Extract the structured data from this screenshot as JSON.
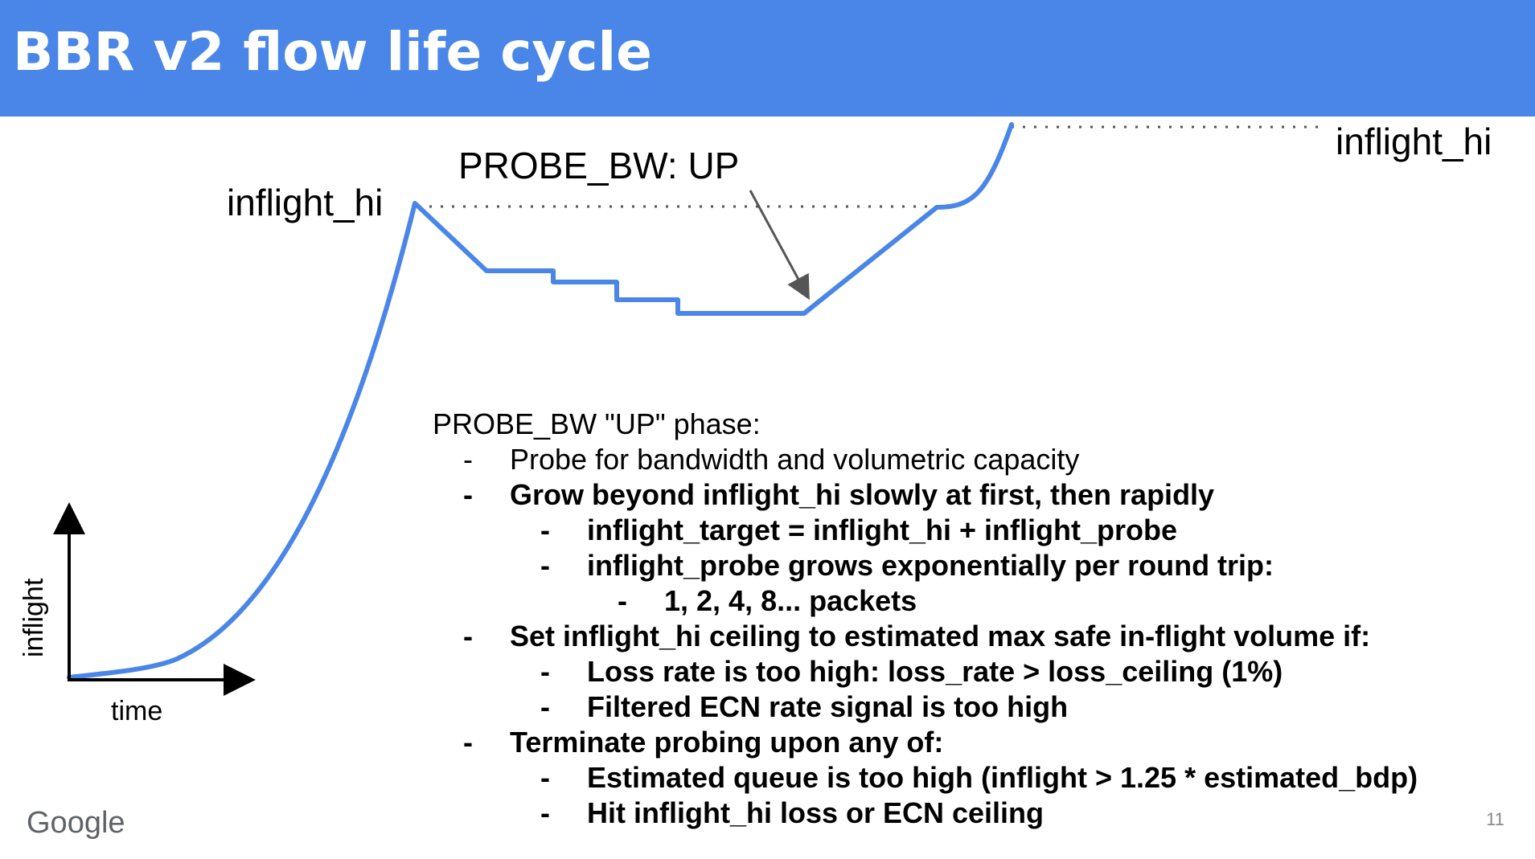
{
  "slide": {
    "title": "BBR v2 flow life cycle",
    "page_number": "11",
    "logo": "Google",
    "colors": {
      "header": "#4a86e8",
      "curve": "#4a86e8",
      "arrow": "#555555"
    }
  },
  "diagram": {
    "inflight_hi_left": "inflight_hi",
    "inflight_hi_right": "inflight_hi",
    "probe_label": "PROBE_BW: UP",
    "axis_y_label": "inflight",
    "axis_x_label": "time"
  },
  "notes": {
    "heading": "PROBE_BW \"UP\" phase:",
    "items": [
      {
        "text": "Probe for bandwidth and volumetric capacity",
        "level": 1,
        "bold": false
      },
      {
        "text": "Grow beyond inflight_hi slowly at first, then rapidly",
        "level": 1,
        "bold": true
      },
      {
        "text": "inflight_target = inflight_hi + inflight_probe",
        "level": 2,
        "bold": true
      },
      {
        "text": "inflight_probe grows exponentially per round trip:",
        "level": 2,
        "bold": true
      },
      {
        "text": "1, 2, 4, 8... packets",
        "level": 3,
        "bold": true
      },
      {
        "text": "Set inflight_hi ceiling to estimated max safe in-flight volume if:",
        "level": 1,
        "bold": true
      },
      {
        "text": "Loss rate is too high: loss_rate > loss_ceiling (1%)",
        "level": 2,
        "bold": true
      },
      {
        "text": "Filtered ECN rate signal is too high",
        "level": 2,
        "bold": true
      },
      {
        "text": "Terminate probing upon any of:",
        "level": 1,
        "bold": true
      },
      {
        "text": "Estimated queue is too high (inflight > 1.25 * estimated_bdp)",
        "level": 2,
        "bold": true
      },
      {
        "text": "Hit inflight_hi loss or ECN ceiling",
        "level": 2,
        "bold": true
      }
    ],
    "bullet": "-"
  }
}
